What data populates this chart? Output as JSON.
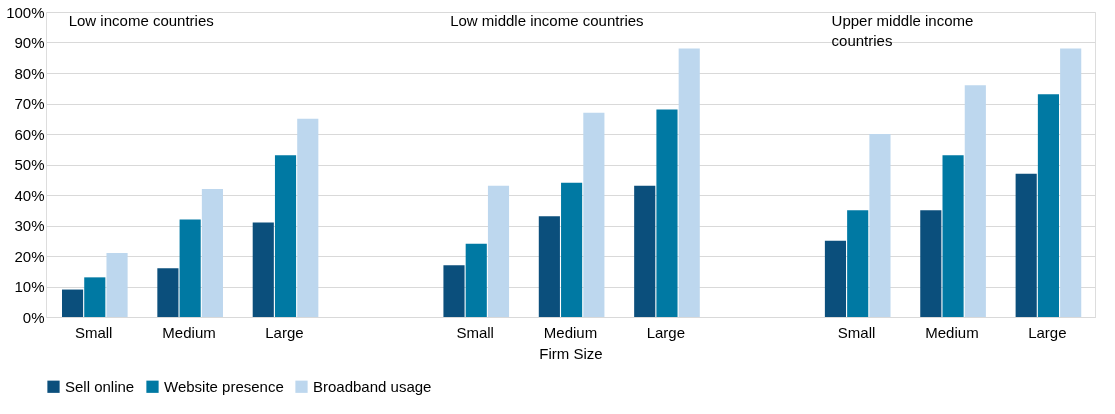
{
  "chart_data": {
    "type": "bar",
    "xlabel": "Firm Size",
    "categories": [
      "Small",
      "Medium",
      "Large",
      null,
      "Small",
      "Medium",
      "Large",
      null,
      "Small",
      "Medium",
      "Large"
    ],
    "series": [
      {
        "name": "Sell online",
        "color": "#0b4f7c",
        "values": [
          9,
          16,
          31,
          null,
          17,
          33,
          43,
          null,
          25,
          35,
          47
        ]
      },
      {
        "name": "Website presence",
        "color": "#0079a3",
        "values": [
          13,
          32,
          53,
          null,
          24,
          44,
          68,
          null,
          35,
          53,
          73
        ]
      },
      {
        "name": "Broadband usage",
        "color": "#bdd7ee",
        "values": [
          21,
          42,
          65,
          null,
          43,
          67,
          88,
          null,
          60,
          76,
          88
        ]
      }
    ],
    "ylim": [
      0,
      100
    ],
    "yticks": [
      {
        "value": 0,
        "label": "0%"
      },
      {
        "value": 10,
        "label": "10%"
      },
      {
        "value": 20,
        "label": "20%"
      },
      {
        "value": 30,
        "label": "30%"
      },
      {
        "value": 40,
        "label": "40%"
      },
      {
        "value": 50,
        "label": "50%"
      },
      {
        "value": 60,
        "label": "60%"
      },
      {
        "value": 70,
        "label": "70%"
      },
      {
        "value": 80,
        "label": "80%"
      },
      {
        "value": 90,
        "label": "90%"
      },
      {
        "value": 100,
        "label": "100%"
      }
    ],
    "annotations": [
      "Low income countries",
      "Low middle income countries",
      "Upper middle income countries"
    ],
    "grid": "y",
    "legend": "bottom"
  }
}
